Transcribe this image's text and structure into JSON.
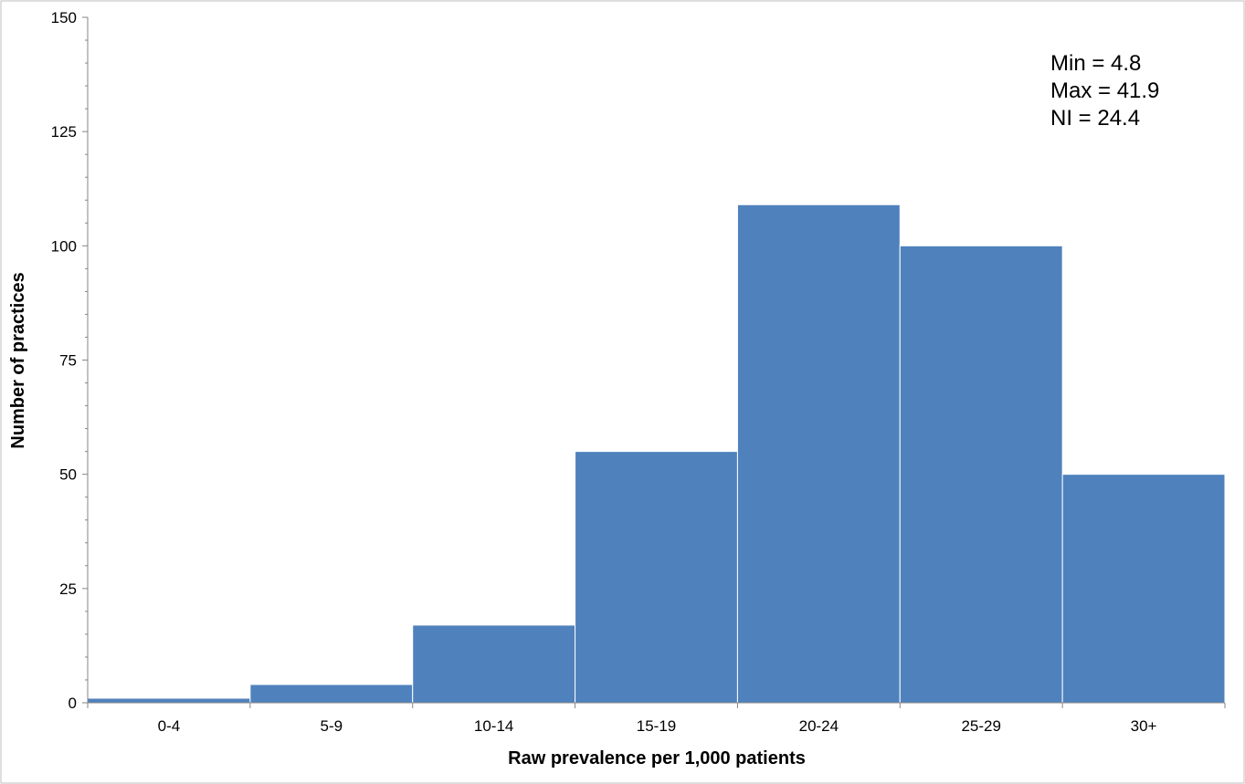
{
  "chart_data": {
    "type": "bar",
    "title": "",
    "xlabel": "Raw prevalence per 1,000 patients",
    "ylabel": "Number of practices",
    "categories": [
      "0-4",
      "5-9",
      "10-14",
      "15-19",
      "20-24",
      "25-29",
      "30+"
    ],
    "series": [
      {
        "values": [
          1,
          4,
          17,
          55,
          109,
          100,
          50
        ]
      }
    ],
    "ylim": [
      0,
      150
    ],
    "yticks": [
      0,
      25,
      50,
      75,
      100,
      125,
      150
    ],
    "grid": false,
    "legend": "none",
    "bar_color": "#4F81BD",
    "bar_edge_color": "#FFFFFF",
    "annotations": [
      "Min = 4.8",
      "Max = 41.9",
      "NI = 24.4"
    ]
  }
}
